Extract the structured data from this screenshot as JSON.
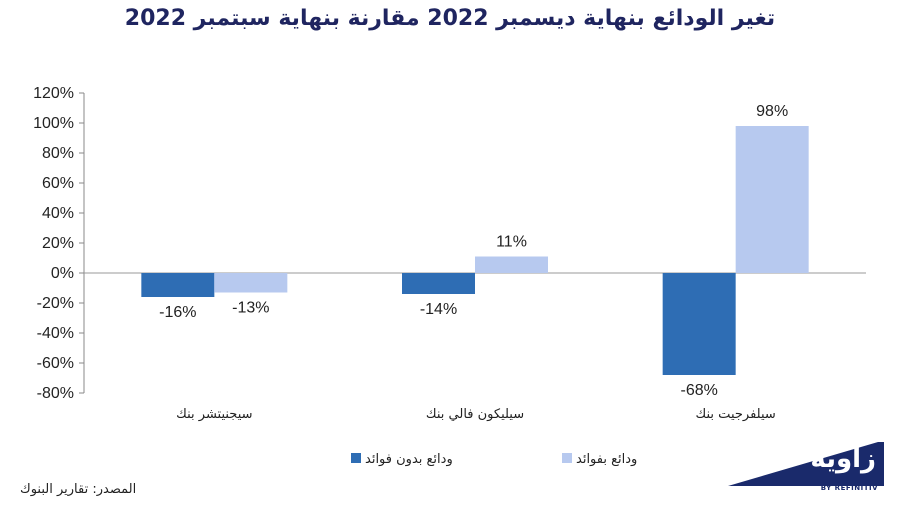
{
  "chart_data": {
    "type": "bar",
    "title": "تغير الودائع بنهاية ديسمبر 2022 مقارنة بنهاية سبتمبر 2022",
    "categories": [
      "سيجنيتشر بنك",
      "سيليكون فالي بنك",
      "سيلفرجيت بنك"
    ],
    "series": [
      {
        "name": "ودائع بدون فوائد",
        "values": [
          -16,
          -14,
          -68
        ],
        "labels": [
          "-16%",
          "-14%",
          "-68%"
        ],
        "color": "#2e6db4"
      },
      {
        "name": "ودائع بفوائد",
        "values": [
          -13,
          11,
          98
        ],
        "labels": [
          "-13%",
          "11%",
          "98%"
        ],
        "color": "#b7c9ef"
      }
    ],
    "ylim": [
      -80,
      120
    ],
    "yticks": [
      120,
      100,
      80,
      60,
      40,
      20,
      0,
      -20,
      -40,
      -60,
      -80
    ],
    "ytick_labels": [
      "120%",
      "100%",
      "80%",
      "60%",
      "40%",
      "20%",
      "0%",
      "-20%",
      "-40%",
      "-60%",
      "-80%"
    ],
    "legend_position": "bottom-center",
    "grid": false,
    "xlabel": "",
    "ylabel": ""
  },
  "source_note": "المصدر: تقارير البنوك",
  "logo": {
    "text": "زاوية",
    "subtext": "BY REFINITIV",
    "color": "#1a2a6b"
  }
}
